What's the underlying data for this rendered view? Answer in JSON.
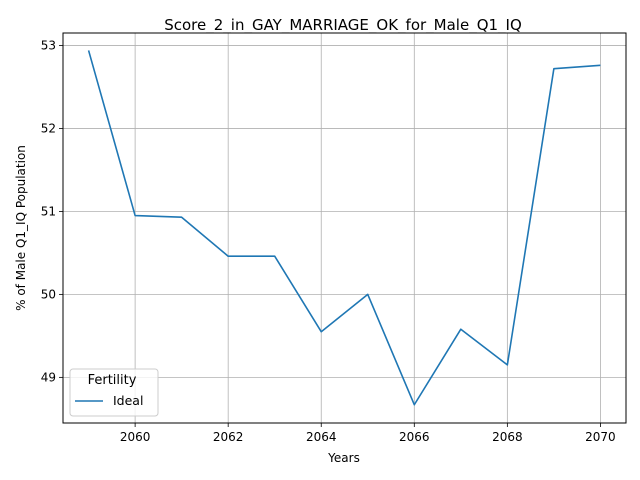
{
  "chart_data": {
    "type": "line",
    "title": "Score_2_in_GAY_MARRIAGE_OK_for_Male_Q1_IQ",
    "xlabel": "Years",
    "ylabel": "% of Male Q1_IQ Population",
    "xlim": [
      2058.45,
      2070.55
    ],
    "ylim": [
      48.45,
      53.15
    ],
    "xticks": [
      2060,
      2062,
      2064,
      2066,
      2068,
      2070
    ],
    "yticks": [
      49,
      50,
      51,
      52,
      53
    ],
    "grid": true,
    "legend": {
      "title": "Fertility",
      "position": "lower-left"
    },
    "series": [
      {
        "name": "Ideal",
        "color": "#1f77b4",
        "x": [
          2059,
          2060,
          2061,
          2062,
          2063,
          2064,
          2065,
          2066,
          2067,
          2068,
          2069,
          2070
        ],
        "y": [
          52.94,
          50.95,
          50.93,
          50.46,
          50.46,
          49.55,
          50.0,
          48.67,
          49.58,
          49.15,
          52.72,
          52.76
        ]
      }
    ]
  }
}
